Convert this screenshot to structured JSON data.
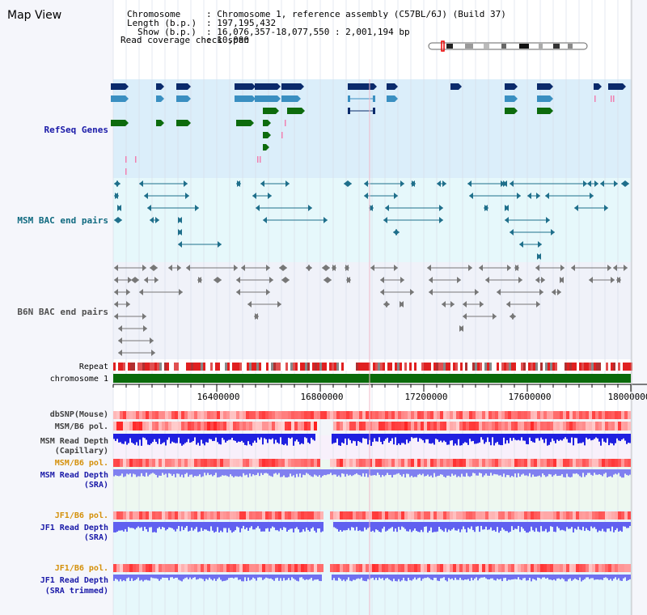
{
  "title": "Map View",
  "header": {
    "chromosome_label": "Chromosome",
    "chromosome_value": ": Chromosome 1, reference assembly (C57BL/6J) (Build 37)",
    "length_label": "Length (b.p.)",
    "length_value": ": 197,195,432",
    "show_label": "Show (b.p.)",
    "show_value": ": 16,076,357-18,077,550 : 2,001,194 bp",
    "coverage_label": "Read coverage check span",
    "coverage_value": ": 10,000"
  },
  "tracks": {
    "refseq": "RefSeq Genes",
    "msm_bac": "MSM BAC end pairs",
    "b6n_bac": "B6N BAC end pairs",
    "repeat": "Repeat",
    "chromosome": "chromosome 1",
    "dbsnp": "dbSNP(Mouse)",
    "msm_b6_pol": "MSM/B6 pol.",
    "msm_depth_cap_1": "MSM Read Depth",
    "msm_depth_cap_2": "(Capillary)",
    "msm_b6_pol_2": "MSM/B6 pol.",
    "msm_depth_sra_1": "MSM Read Depth",
    "msm_depth_sra_2": "(SRA)",
    "jf1_b6_pol": "JF1/B6 pol.",
    "jf1_depth_sra_1": "JF1 Read Depth",
    "jf1_depth_sra_2": "(SRA)",
    "jf1_b6_pol_2": "JF1/B6 pol.",
    "jf1_depth_trim_1": "JF1 Read Depth",
    "jf1_depth_trim_2": "(SRA trimmed)"
  },
  "axis": {
    "range_bp": [
      16076357,
      18077550
    ],
    "ticks": [
      "16400000",
      "16800000",
      "17200000",
      "17600000",
      "18000000"
    ]
  },
  "colors": {
    "gene_navy": "#0a2a6b",
    "gene_blue": "#3a8fc1",
    "gene_green": "#0d6b0d",
    "bac_msm": "#1f6f8b",
    "bac_b6n": "#777777",
    "chromosome": "#0a6a0a",
    "label_blue": "#1a1aa8",
    "label_teal": "#106a80",
    "label_gray": "#505050",
    "label_orange": "#d4900a"
  }
}
